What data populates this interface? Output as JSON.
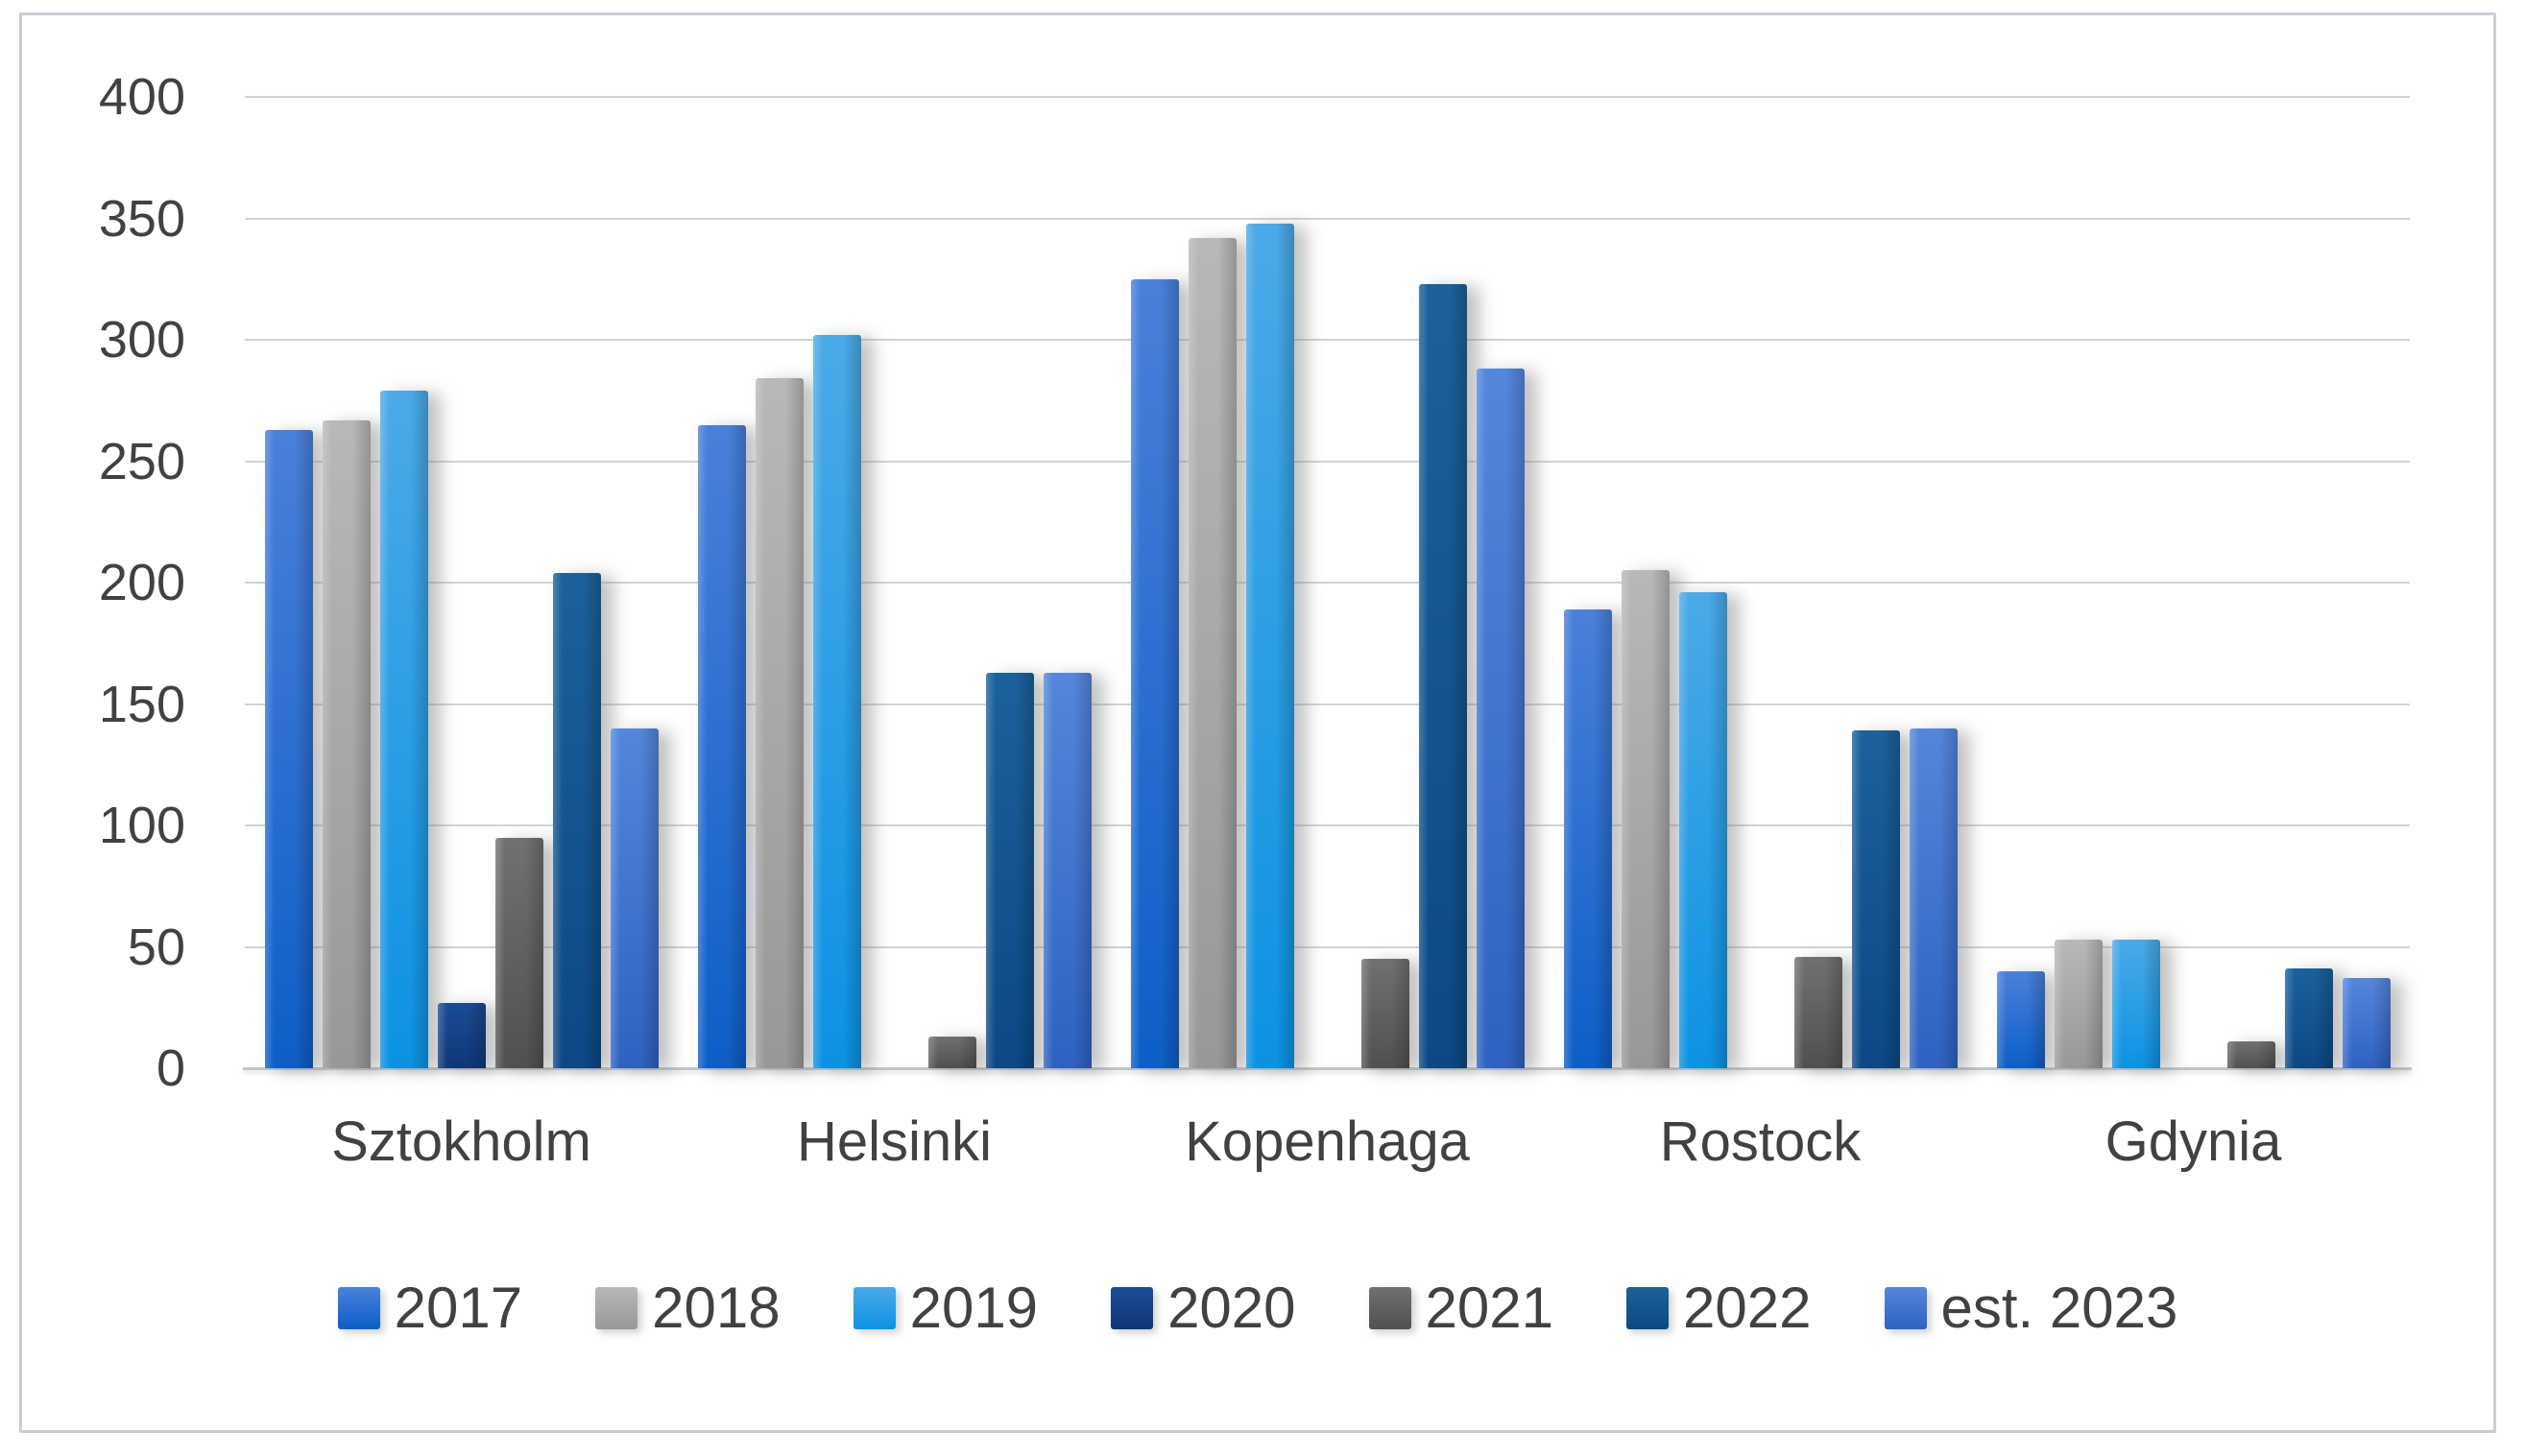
{
  "chart_data": {
    "type": "bar",
    "title": "",
    "xlabel": "",
    "ylabel": "",
    "categories": [
      "Sztokholm",
      "Helsinki",
      "Kopenhaga",
      "Rostock",
      "Gdynia"
    ],
    "series": [
      {
        "name": "2017",
        "color_top": "#4A80DA",
        "color_bottom": "#0D5EC7",
        "values": [
          263,
          265,
          325,
          189,
          40
        ]
      },
      {
        "name": "2018",
        "color_top": "#B8B8B8",
        "color_bottom": "#989898",
        "values": [
          267,
          284,
          342,
          205,
          53
        ]
      },
      {
        "name": "2019",
        "color_top": "#4BAAE7",
        "color_bottom": "#0C92E3",
        "values": [
          279,
          302,
          348,
          196,
          53
        ]
      },
      {
        "name": "2020",
        "color_top": "#1C4B95",
        "color_bottom": "#0E3779",
        "values": [
          27,
          0,
          0,
          0,
          0
        ]
      },
      {
        "name": "2021",
        "color_top": "#717171",
        "color_bottom": "#505050",
        "values": [
          95,
          13,
          45,
          46,
          11
        ]
      },
      {
        "name": "2022",
        "color_top": "#1B619B",
        "color_bottom": "#0C4885",
        "values": [
          204,
          163,
          323,
          139,
          41
        ]
      },
      {
        "name": "est. 2023",
        "color_top": "#5586DC",
        "color_bottom": "#2E62C2",
        "values": [
          140,
          163,
          288,
          140,
          37
        ]
      }
    ],
    "y_ticks": [
      0,
      50,
      100,
      150,
      200,
      250,
      300,
      350,
      400
    ],
    "ylim": [
      0,
      400
    ],
    "grid": "horizontal",
    "legend_position": "bottom"
  },
  "colors": {
    "background": "#FFFFFF",
    "frame_border": "#C9CED3",
    "gridline": "#D2D3D4",
    "axis_line": "#C2C6C9",
    "text": "#414141"
  }
}
